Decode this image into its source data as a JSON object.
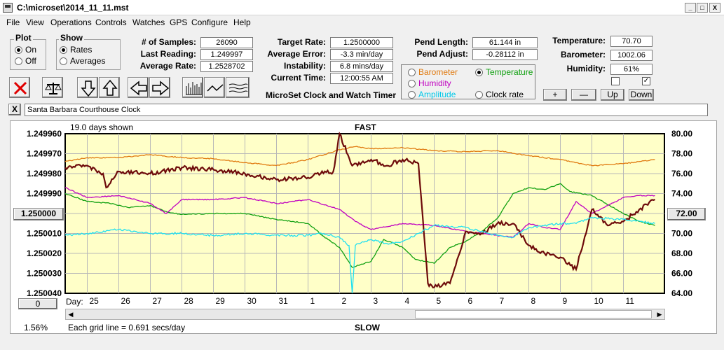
{
  "window": {
    "title": "C:\\microset\\2014_11_11.mst",
    "min": "_",
    "max": "□",
    "close": "X"
  },
  "menu": [
    "File",
    "View",
    "Operations",
    "Controls",
    "Watches",
    "GPS",
    "Configure",
    "Help"
  ],
  "plot_group": {
    "label": "Plot",
    "on": "On",
    "off": "Off",
    "selected": "On"
  },
  "show_group": {
    "label": "Show",
    "rates": "Rates",
    "averages": "Averages",
    "selected": "Rates"
  },
  "stats": {
    "samples_label": "# of Samples:",
    "samples": "26090",
    "last_label": "Last Reading:",
    "last": "1.249997",
    "avg_label": "Average Rate:",
    "avg": "1.2528702",
    "target_label": "Target Rate:",
    "target": "1.2500000",
    "err_label": "Average Error:",
    "err": "-3.3 min/day",
    "inst_label": "Instability:",
    "inst": "6.8 mins/day",
    "time_label": "Current Time:",
    "time": "12:00:55 AM",
    "app_name": "MicroSet Clock and Watch Timer",
    "pend_len_label": "Pend Length:",
    "pend_len": "61.144 in",
    "pend_adj_label": "Pend Adjust:",
    "pend_adj": "-0.28112 in",
    "temp_label": "Temperature:",
    "temp": "70.70",
    "baro_label": "Barometer:",
    "baro": "1002.06",
    "hum_label": "Humidity:",
    "hum": "61%"
  },
  "sensor_options": [
    {
      "label": "Barometer",
      "color": "#e07a10",
      "selected": false
    },
    {
      "label": "Temperature",
      "color": "#10a010",
      "selected": true
    },
    {
      "label": "Humidity",
      "color": "#c000c0",
      "selected": false
    },
    {
      "label": "Clock rate",
      "color": "#000000",
      "selected": false
    },
    {
      "label": "Amplitude",
      "color": "#00c8e8",
      "selected": false
    }
  ],
  "adjust_buttons": {
    "plus": "+",
    "minus": "—",
    "up": "Up",
    "down": "Down"
  },
  "checkboxes": [
    {
      "checked": false,
      "mark": ""
    },
    {
      "checked": true,
      "mark": "✓"
    }
  ],
  "toolbar_icons": [
    "close-x-icon",
    "balance-icon",
    "arrow-down-icon",
    "arrow-up-icon",
    "arrow-left-icon",
    "arrow-right-icon",
    "bars-icon",
    "wave-icon",
    "lines-icon"
  ],
  "clock_name": "Santa Barbara Courthouse Clock",
  "clear_button": "X",
  "chart_header": {
    "days_shown": "19.0 days shown",
    "fast": "FAST",
    "slow": "SLOW",
    "grid_note": "Each grid line = 0.691 secs/day",
    "percent": "1.56%",
    "center_button": "1.250000",
    "right_button": "72.00",
    "zero_button": "0",
    "day_prefix": "Day:"
  },
  "chart_data": {
    "type": "line",
    "left_axis": {
      "ticks": [
        "1.249960",
        "1.249970",
        "1.249980",
        "1.249990",
        "1.250000",
        "1.250010",
        "1.250020",
        "1.250030",
        "1.250040"
      ],
      "ylim": [
        1.24996,
        1.25004
      ],
      "reversed": true
    },
    "right_axis": {
      "ticks": [
        "80.00",
        "78.00",
        "76.00",
        "74.00",
        "72.00",
        "70.00",
        "68.00",
        "66.00",
        "64.00"
      ],
      "ylim": [
        64,
        80
      ]
    },
    "x_axis": {
      "ticks": [
        "25",
        "26",
        "27",
        "28",
        "29",
        "30",
        "31",
        "1",
        "2",
        "3",
        "4",
        "5",
        "6",
        "7",
        "8",
        "9",
        "10",
        "11"
      ],
      "xlim": [
        24.3,
        43.3
      ]
    },
    "grid": true,
    "series": [
      {
        "name": "Barometer",
        "color": "#e07a10",
        "axis": "right",
        "x": [
          24.3,
          25.0,
          26.0,
          27.0,
          28.0,
          29.0,
          30.0,
          31.0,
          32.0,
          33.0,
          33.5,
          34.0,
          35.0,
          36.0,
          37.0,
          38.0,
          39.0,
          40.0,
          41.0,
          42.0,
          43.0
        ],
        "y": [
          77.2,
          77.6,
          77.6,
          77.9,
          77.6,
          77.5,
          77.1,
          76.8,
          77.4,
          78.4,
          78.7,
          78.5,
          78.6,
          78.3,
          78.2,
          78.3,
          77.8,
          77.4,
          76.8,
          77.0,
          77.4
        ]
      },
      {
        "name": "Temperature",
        "color": "#10a010",
        "axis": "right",
        "x": [
          24.3,
          25.0,
          25.8,
          26.3,
          27.0,
          27.5,
          28.0,
          29.0,
          30.0,
          31.0,
          32.0,
          32.5,
          33.0,
          33.4,
          34.0,
          34.4,
          35.0,
          35.4,
          36.0,
          36.5,
          37.0,
          37.5,
          38.0,
          38.5,
          39.0,
          39.5,
          40.0,
          40.3,
          41.0,
          42.0,
          42.5,
          43.0
        ],
        "y": [
          74.0,
          73.2,
          73.0,
          72.6,
          72.8,
          72.2,
          71.9,
          72.0,
          72.0,
          71.4,
          71.0,
          69.7,
          68.6,
          66.6,
          67.2,
          69.4,
          68.6,
          67.4,
          67.0,
          68.6,
          69.2,
          70.2,
          71.5,
          74.0,
          74.6,
          74.4,
          75.0,
          74.2,
          73.8,
          72.0,
          71.2,
          70.8
        ]
      },
      {
        "name": "Humidity",
        "color": "#c000c0",
        "axis": "left",
        "x": [
          24.3,
          25.0,
          26.0,
          27.0,
          27.5,
          28.0,
          29.0,
          30.0,
          31.0,
          32.0,
          33.0,
          33.5,
          34.0,
          35.0,
          36.0,
          37.0,
          38.0,
          38.5,
          39.0,
          39.5,
          40.0,
          40.5,
          41.0,
          41.5,
          42.0,
          42.5,
          43.0
        ],
        "y": [
          1.249987,
          1.249992,
          1.249991,
          1.249995,
          1.25,
          1.249993,
          1.249993,
          1.249992,
          1.249995,
          1.249993,
          1.249998,
          1.250004,
          1.250008,
          1.250005,
          1.250006,
          1.250009,
          1.250011,
          1.250012,
          1.250005,
          1.250007,
          1.250008,
          1.249994,
          1.25,
          1.249996,
          1.249992,
          1.249991,
          1.249991
        ]
      },
      {
        "name": "Clock rate",
        "color": "#6e0b0b",
        "axis": "left",
        "x": [
          24.3,
          25.0,
          25.5,
          25.6,
          26.0,
          27.0,
          28.0,
          29.0,
          30.0,
          31.0,
          32.0,
          32.4,
          32.8,
          33.0,
          33.4,
          34.0,
          34.5,
          35.0,
          35.5,
          35.8,
          36.0,
          36.5,
          37.0,
          37.5,
          38.0,
          38.5,
          39.0,
          39.5,
          40.0,
          40.5,
          41.0,
          41.5,
          42.0,
          42.5,
          43.0
        ],
        "y": [
          1.249977,
          1.249976,
          1.24998,
          1.249987,
          1.249979,
          1.24998,
          1.249977,
          1.249978,
          1.24998,
          1.249983,
          1.249982,
          1.24998,
          1.249979,
          1.24996,
          1.249976,
          1.249973,
          1.249976,
          1.249973,
          1.249975,
          1.250035,
          1.250037,
          1.250035,
          1.250009,
          1.25001,
          1.250005,
          1.250005,
          1.250016,
          1.25002,
          1.250022,
          1.250028,
          1.249998,
          1.250006,
          1.250004,
          1.249998,
          1.249993
        ]
      },
      {
        "name": "Amplitude",
        "color": "#20e0f0",
        "axis": "left",
        "x": [
          24.3,
          25.0,
          26.0,
          27.0,
          28.0,
          29.0,
          30.0,
          31.0,
          32.0,
          32.5,
          33.0,
          33.3,
          33.4,
          33.5,
          34.0,
          34.5,
          35.0,
          35.5,
          36.0,
          37.0,
          38.0,
          38.5,
          39.0,
          40.0,
          40.5,
          41.0,
          42.0,
          43.0
        ],
        "y": [
          1.250011,
          1.25001,
          1.250008,
          1.25001,
          1.25001,
          1.250011,
          1.25001,
          1.250011,
          1.250011,
          1.25001,
          1.250012,
          1.250016,
          1.25004,
          1.250016,
          1.250013,
          1.250015,
          1.250014,
          1.25001,
          1.250006,
          1.250007,
          1.250011,
          1.250012,
          1.250007,
          1.250005,
          1.250005,
          1.250002,
          1.250003,
          1.250005
        ]
      }
    ]
  }
}
